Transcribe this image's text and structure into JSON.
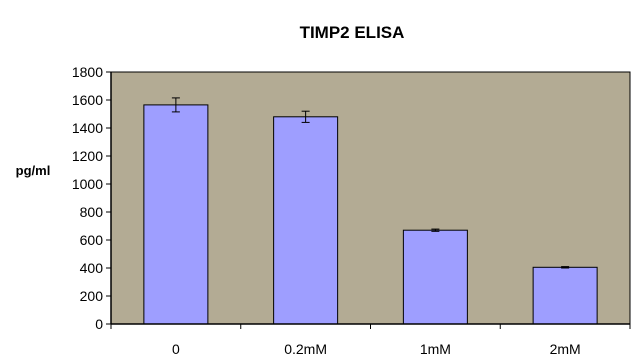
{
  "chart_data": {
    "type": "bar",
    "title": "TIMP2 ELISA",
    "xlabel": "",
    "ylabel": "pg/ml",
    "categories": [
      "0",
      "0,2mM",
      "1mM",
      "2mM"
    ],
    "values": [
      1565,
      1480,
      670,
      405
    ],
    "errors": [
      50,
      40,
      8,
      5
    ],
    "ylim": [
      0,
      1800
    ],
    "yticks": [
      0,
      200,
      400,
      600,
      800,
      1000,
      1200,
      1400,
      1600,
      1800
    ],
    "grid": false,
    "legend": "none",
    "colors": {
      "plot_background": "#b3ab94",
      "bar_fill": "#9e9eff",
      "bar_stroke": "#000000"
    }
  }
}
